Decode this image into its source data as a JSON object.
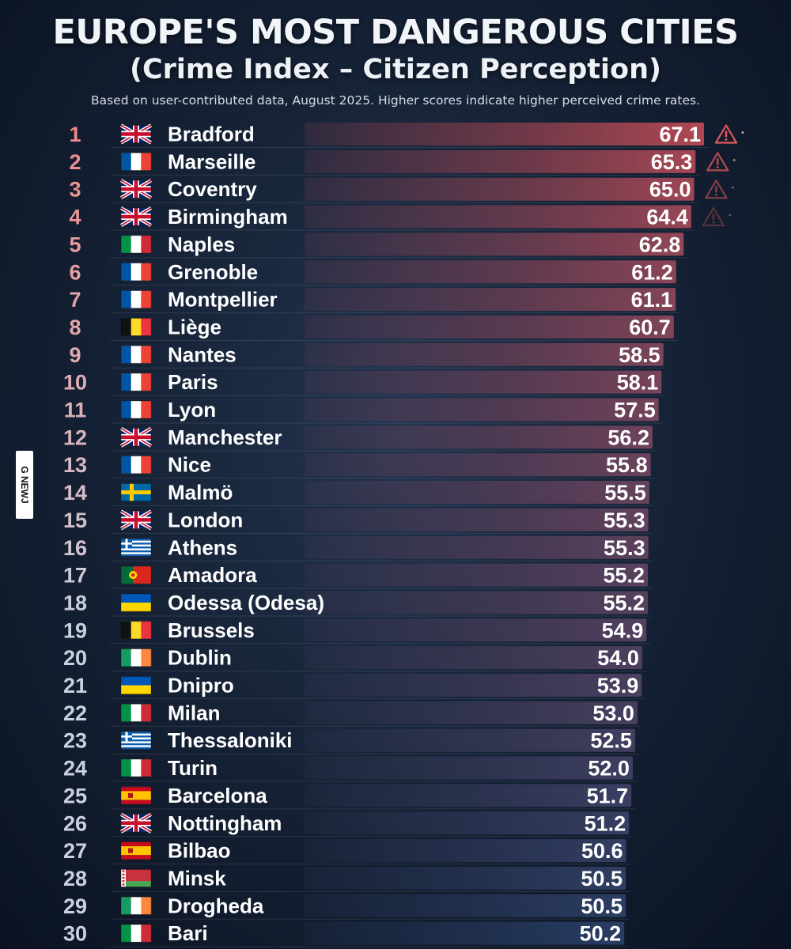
{
  "watermark": "G NEWJ",
  "chart_data": {
    "type": "bar",
    "title": "EUROPE'S MOST DANGEROUS CITIES",
    "subtitle": "(Crime Index – Citizen Perception)",
    "note": "Based on user-contributed data, August 2025. Higher scores indicate higher perceived crime rates.",
    "orientation": "horizontal",
    "colors": {
      "top": "#b84a55",
      "bottom": "#2a3f66",
      "rank_top": "#f08a8a",
      "rank_bottom": "#c9d1de",
      "warning": "#e05a5a"
    },
    "warning_ranks": [
      1,
      2,
      3,
      4
    ],
    "rows": [
      {
        "rank": "1",
        "city": "Bradford",
        "country": "uk",
        "value": 67.1
      },
      {
        "rank": "2",
        "city": "Marseille",
        "country": "france",
        "value": 65.3
      },
      {
        "rank": "3",
        "city": "Coventry",
        "country": "uk",
        "value": 65.0
      },
      {
        "rank": "4",
        "city": "Birmingham",
        "country": "uk",
        "value": 64.4
      },
      {
        "rank": "5",
        "city": "Naples",
        "country": "italy",
        "value": 62.8
      },
      {
        "rank": "6",
        "city": "Grenoble",
        "country": "france",
        "value": 61.2
      },
      {
        "rank": "7",
        "city": "Montpellier",
        "country": "france",
        "value": 61.1
      },
      {
        "rank": "8",
        "city": "Liège",
        "country": "belgium",
        "value": 60.7
      },
      {
        "rank": "9",
        "city": "Nantes",
        "country": "france",
        "value": 58.5
      },
      {
        "rank": "10",
        "city": "Paris",
        "country": "france",
        "value": 58.1
      },
      {
        "rank": "11",
        "city": "Lyon",
        "country": "france",
        "value": 57.5
      },
      {
        "rank": "12",
        "city": "Manchester",
        "country": "uk",
        "value": 56.2
      },
      {
        "rank": "13",
        "city": "Nice",
        "country": "france",
        "value": 55.8
      },
      {
        "rank": "14",
        "city": "Malmö",
        "country": "sweden",
        "value": 55.5
      },
      {
        "rank": "15",
        "city": "London",
        "country": "uk",
        "value": 55.3
      },
      {
        "rank": "16",
        "city": "Athens",
        "country": "greece",
        "value": 55.3
      },
      {
        "rank": "17",
        "city": "Amadora",
        "country": "portugal",
        "value": 55.2
      },
      {
        "rank": "18",
        "city": "Odessa (Odesa)",
        "country": "ukraine",
        "value": 55.2
      },
      {
        "rank": "19",
        "city": "Brussels",
        "country": "belgium",
        "value": 54.9
      },
      {
        "rank": "20",
        "city": "Dublin",
        "country": "ireland",
        "value": 54.0
      },
      {
        "rank": "21",
        "city": "Dnipro",
        "country": "ukraine",
        "value": 53.9
      },
      {
        "rank": "22",
        "city": "Milan",
        "country": "italy",
        "value": 53.0
      },
      {
        "rank": "23",
        "city": "Thessaloniki",
        "country": "greece",
        "value": 52.5
      },
      {
        "rank": "24",
        "city": "Turin",
        "country": "italy",
        "value": 52.0
      },
      {
        "rank": "25",
        "city": "Barcelona",
        "country": "spain",
        "value": 51.7
      },
      {
        "rank": "26",
        "city": "Nottingham",
        "country": "uk",
        "value": 51.2
      },
      {
        "rank": "27",
        "city": "Bilbao",
        "country": "spain",
        "value": 50.6
      },
      {
        "rank": "28",
        "city": "Minsk",
        "country": "belarus",
        "value": 50.5
      },
      {
        "rank": "29",
        "city": "Drogheda",
        "country": "ireland",
        "value": 50.5
      },
      {
        "rank": "30",
        "city": "Bari",
        "country": "italy",
        "value": 50.2
      }
    ]
  }
}
